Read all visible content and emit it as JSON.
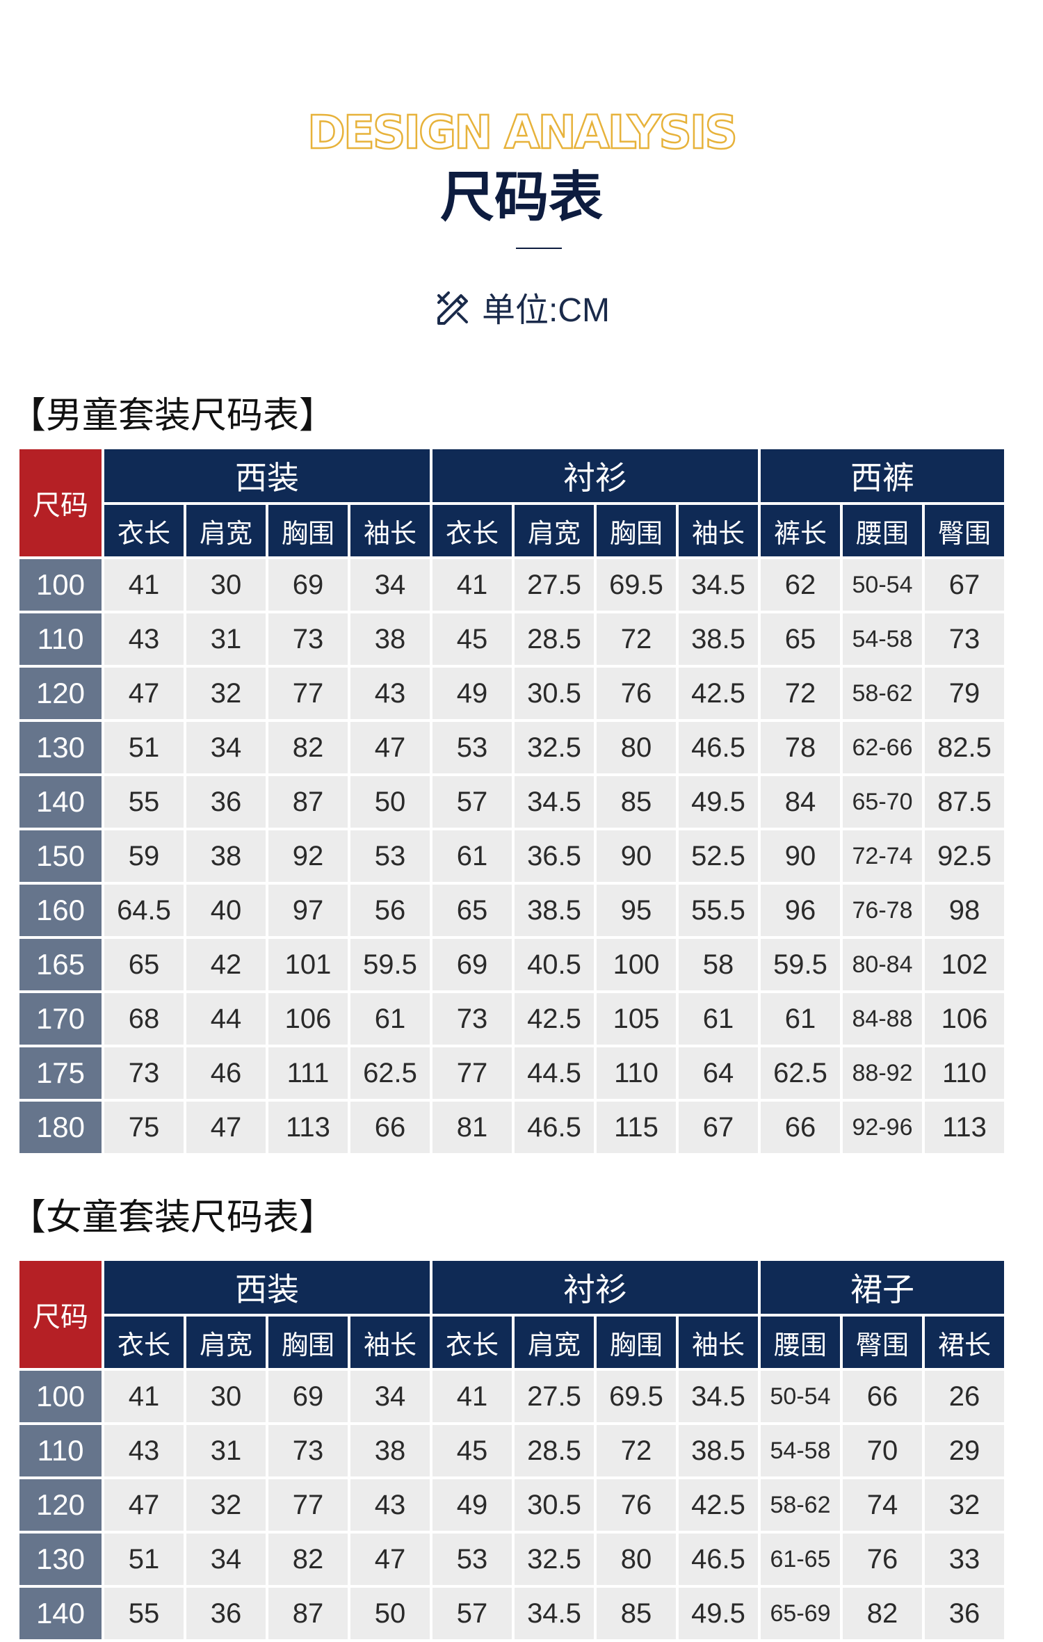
{
  "header": {
    "title_en": "DESIGN ANALYSIS",
    "title_cn": "尺码表",
    "unit_icon": "ruler-pencil-icon",
    "unit": "单位:CM"
  },
  "colors": {
    "navy": "#0f2a55",
    "red": "#b52025",
    "slate": "#66758c",
    "gold": "#e7b23a",
    "cell": "#ececec"
  },
  "boys": {
    "title": "【男童套装尺码表】",
    "corner": "尺码",
    "groups": [
      {
        "label": "西装",
        "cols": [
          "衣长",
          "肩宽",
          "胸围",
          "袖长"
        ]
      },
      {
        "label": "衬衫",
        "cols": [
          "衣长",
          "肩宽",
          "胸围",
          "袖长"
        ]
      },
      {
        "label": "西裤",
        "cols": [
          "裤长",
          "腰围",
          "臀围"
        ]
      }
    ],
    "rows": [
      [
        "100",
        "41",
        "30",
        "69",
        "34",
        "41",
        "27.5",
        "69.5",
        "34.5",
        "62",
        "50-54",
        "67"
      ],
      [
        "110",
        "43",
        "31",
        "73",
        "38",
        "45",
        "28.5",
        "72",
        "38.5",
        "65",
        "54-58",
        "73"
      ],
      [
        "120",
        "47",
        "32",
        "77",
        "43",
        "49",
        "30.5",
        "76",
        "42.5",
        "72",
        "58-62",
        "79"
      ],
      [
        "130",
        "51",
        "34",
        "82",
        "47",
        "53",
        "32.5",
        "80",
        "46.5",
        "78",
        "62-66",
        "82.5"
      ],
      [
        "140",
        "55",
        "36",
        "87",
        "50",
        "57",
        "34.5",
        "85",
        "49.5",
        "84",
        "65-70",
        "87.5"
      ],
      [
        "150",
        "59",
        "38",
        "92",
        "53",
        "61",
        "36.5",
        "90",
        "52.5",
        "90",
        "72-74",
        "92.5"
      ],
      [
        "160",
        "64.5",
        "40",
        "97",
        "56",
        "65",
        "38.5",
        "95",
        "55.5",
        "96",
        "76-78",
        "98"
      ],
      [
        "165",
        "65",
        "42",
        "101",
        "59.5",
        "69",
        "40.5",
        "100",
        "58",
        "59.5",
        "80-84",
        "102"
      ],
      [
        "170",
        "68",
        "44",
        "106",
        "61",
        "73",
        "42.5",
        "105",
        "61",
        "61",
        "84-88",
        "106"
      ],
      [
        "175",
        "73",
        "46",
        "111",
        "62.5",
        "77",
        "44.5",
        "110",
        "64",
        "62.5",
        "88-92",
        "110"
      ],
      [
        "180",
        "75",
        "47",
        "113",
        "66",
        "81",
        "46.5",
        "115",
        "67",
        "66",
        "92-96",
        "113"
      ]
    ]
  },
  "girls": {
    "title": "【女童套装尺码表】",
    "corner": "尺码",
    "groups": [
      {
        "label": "西装",
        "cols": [
          "衣长",
          "肩宽",
          "胸围",
          "袖长"
        ]
      },
      {
        "label": "衬衫",
        "cols": [
          "衣长",
          "肩宽",
          "胸围",
          "袖长"
        ]
      },
      {
        "label": "裙子",
        "cols": [
          "腰围",
          "臀围",
          "裙长"
        ]
      }
    ],
    "rows": [
      [
        "100",
        "41",
        "30",
        "69",
        "34",
        "41",
        "27.5",
        "69.5",
        "34.5",
        "50-54",
        "66",
        "26"
      ],
      [
        "110",
        "43",
        "31",
        "73",
        "38",
        "45",
        "28.5",
        "72",
        "38.5",
        "54-58",
        "70",
        "29"
      ],
      [
        "120",
        "47",
        "32",
        "77",
        "43",
        "49",
        "30.5",
        "76",
        "42.5",
        "58-62",
        "74",
        "32"
      ],
      [
        "130",
        "51",
        "34",
        "82",
        "47",
        "53",
        "32.5",
        "80",
        "46.5",
        "61-65",
        "76",
        "33"
      ],
      [
        "140",
        "55",
        "36",
        "87",
        "50",
        "57",
        "34.5",
        "85",
        "49.5",
        "65-69",
        "82",
        "36"
      ]
    ]
  }
}
